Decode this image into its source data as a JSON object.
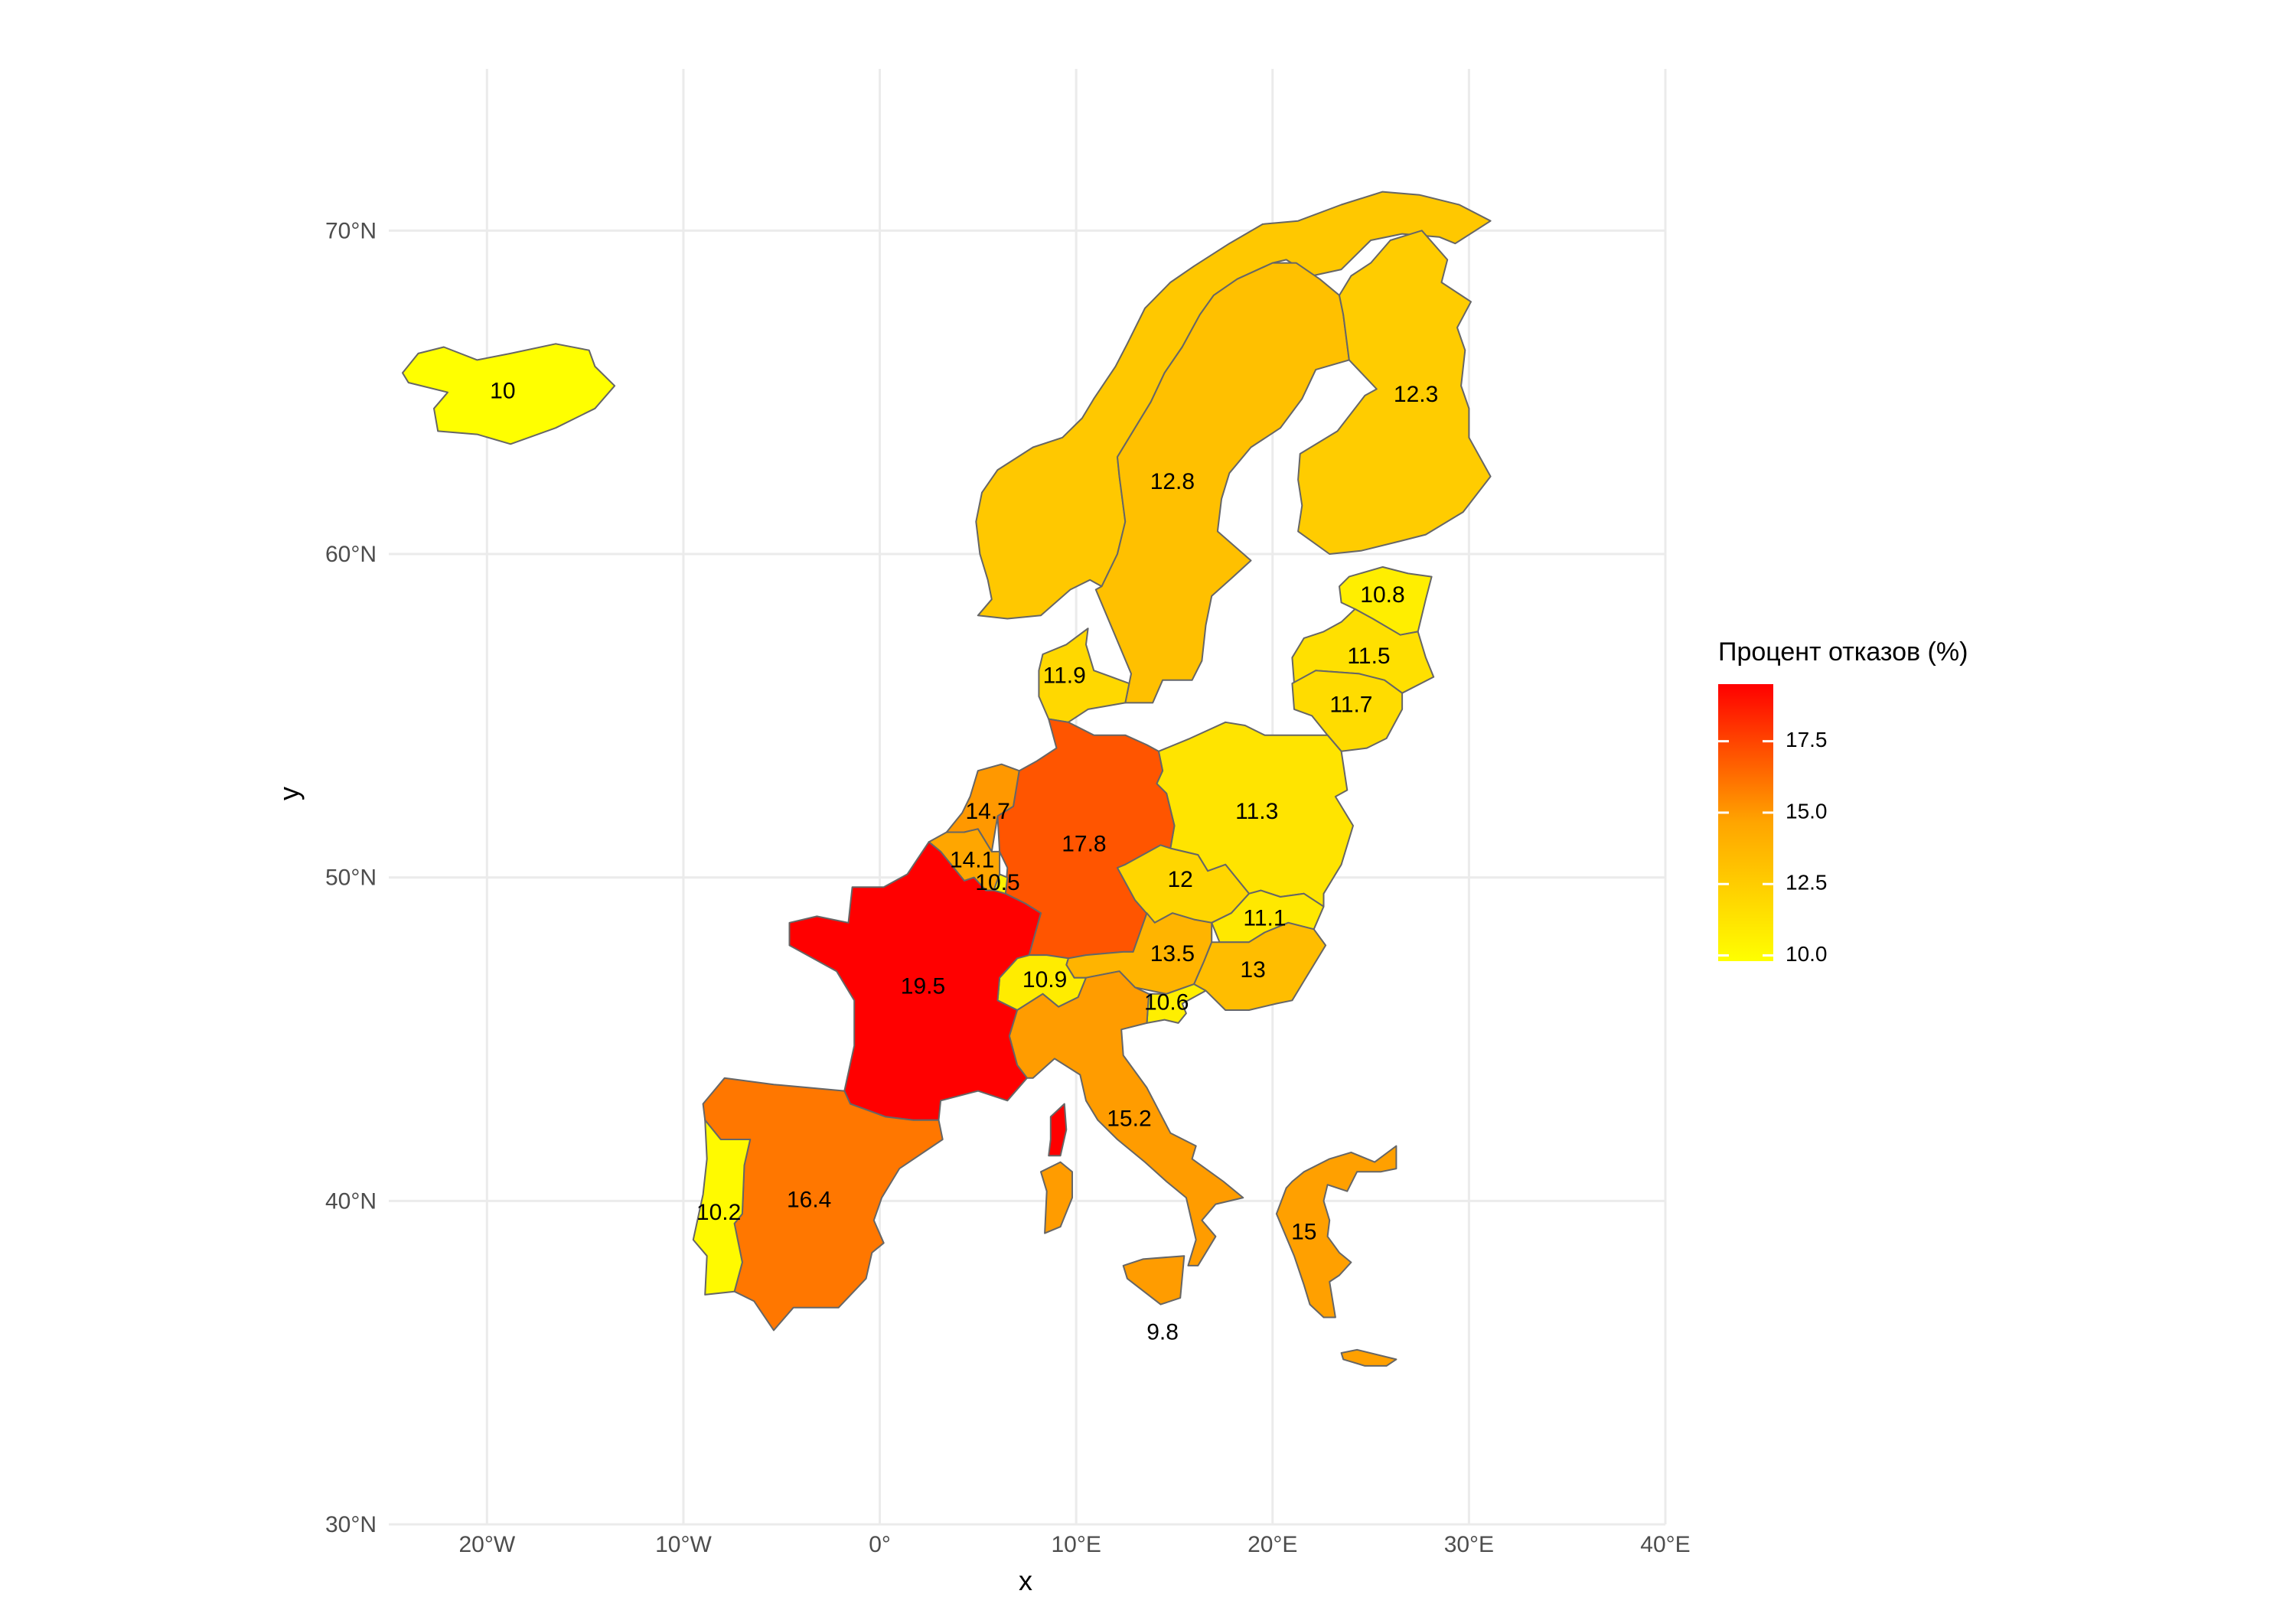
{
  "chart_data": {
    "type": "choropleth-map",
    "xlabel": "x",
    "ylabel": "y",
    "xlim": [
      -25,
      40
    ],
    "ylim": [
      30,
      75
    ],
    "x_ticks": [
      {
        "value": -20,
        "label": "20°W"
      },
      {
        "value": -10,
        "label": "10°W"
      },
      {
        "value": 0,
        "label": "0°"
      },
      {
        "value": 10,
        "label": "10°E"
      },
      {
        "value": 20,
        "label": "20°E"
      },
      {
        "value": 30,
        "label": "30°E"
      },
      {
        "value": 40,
        "label": "40°E"
      }
    ],
    "y_ticks": [
      {
        "value": 30,
        "label": "30°N"
      },
      {
        "value": 40,
        "label": "40°N"
      },
      {
        "value": 50,
        "label": "50°N"
      },
      {
        "value": 60,
        "label": "60°N"
      },
      {
        "value": 70,
        "label": "70°N"
      }
    ],
    "grid": true,
    "legend": {
      "title": "Процент отказов (%)",
      "placement": "right",
      "range": [
        9.8,
        19.5
      ],
      "colors": [
        "#ffff00",
        "#ffa500",
        "#ff0000"
      ],
      "ticks": [
        {
          "value": 10.0,
          "label": "10.0"
        },
        {
          "value": 12.5,
          "label": "12.5"
        },
        {
          "value": 15.0,
          "label": "15.0"
        },
        {
          "value": 17.5,
          "label": "17.5"
        }
      ]
    },
    "regions": [
      {
        "id": "iceland",
        "label": "10",
        "value": 10.0,
        "label_lon": -19.2,
        "label_lat": 65.0,
        "color": "#ffff00"
      },
      {
        "id": "norway",
        "label": "",
        "value": 12.8,
        "color": "#ffc800"
      },
      {
        "id": "sweden",
        "label": "12.8",
        "value": 12.8,
        "label_lon": 14.9,
        "label_lat": 62.2,
        "color": "#ffc000"
      },
      {
        "id": "finland",
        "label": "12.3",
        "value": 12.3,
        "label_lon": 27.3,
        "label_lat": 64.9,
        "color": "#ffcc00"
      },
      {
        "id": "estonia",
        "label": "10.8",
        "value": 10.8,
        "label_lon": 25.6,
        "label_lat": 58.7,
        "color": "#ffee00"
      },
      {
        "id": "latvia",
        "label": "11.5",
        "value": 11.5,
        "label_lon": 24.9,
        "label_lat": 56.8,
        "color": "#ffe000"
      },
      {
        "id": "lithuania",
        "label": "11.7",
        "value": 11.7,
        "label_lon": 24.0,
        "label_lat": 55.3,
        "color": "#ffdc00"
      },
      {
        "id": "denmark",
        "label": "11.9",
        "value": 11.9,
        "label_lon": 9.4,
        "label_lat": 56.2,
        "color": "#ffd800"
      },
      {
        "id": "poland",
        "label": "11.3",
        "value": 11.3,
        "label_lon": 19.2,
        "label_lat": 52.0,
        "color": "#ffe400"
      },
      {
        "id": "germany",
        "label": "17.8",
        "value": 17.8,
        "label_lon": 10.4,
        "label_lat": 51.0,
        "color": "#ff5500"
      },
      {
        "id": "netherlands",
        "label": "14.7",
        "value": 14.7,
        "label_lon": 5.5,
        "label_lat": 52.0,
        "color": "#ff9800"
      },
      {
        "id": "belgium",
        "label": "14.1",
        "value": 14.1,
        "label_lon": 4.7,
        "label_lat": 50.5,
        "color": "#ffa600"
      },
      {
        "id": "luxembourg",
        "label": "10.5",
        "value": 10.5,
        "label_lon": 6.0,
        "label_lat": 49.8,
        "color": "#fff000"
      },
      {
        "id": "czechia",
        "label": "12",
        "value": 12.0,
        "label_lon": 15.3,
        "label_lat": 49.9,
        "color": "#ffd600"
      },
      {
        "id": "slovakia",
        "label": "11.1",
        "value": 11.1,
        "label_lon": 19.6,
        "label_lat": 48.7,
        "color": "#ffe800"
      },
      {
        "id": "austria",
        "label": "13.5",
        "value": 13.5,
        "label_lon": 14.9,
        "label_lat": 47.6,
        "color": "#ffb400"
      },
      {
        "id": "hungary",
        "label": "13",
        "value": 13.0,
        "label_lon": 19.0,
        "label_lat": 47.1,
        "color": "#ffbd00"
      },
      {
        "id": "switzerland",
        "label": "10.9",
        "value": 10.9,
        "label_lon": 8.4,
        "label_lat": 46.8,
        "color": "#ffec00"
      },
      {
        "id": "slovenia",
        "label": "10.6",
        "value": 10.6,
        "label_lon": 14.6,
        "label_lat": 46.1,
        "color": "#ffef00"
      },
      {
        "id": "france",
        "label": "19.5",
        "value": 19.5,
        "label_lon": 2.2,
        "label_lat": 46.6,
        "color": "#ff0000"
      },
      {
        "id": "italy",
        "label": "15.2",
        "value": 15.2,
        "label_lon": 12.7,
        "label_lat": 42.5,
        "color": "#ff9c00"
      },
      {
        "id": "spain",
        "label": "16.4",
        "value": 16.4,
        "label_lon": -3.6,
        "label_lat": 40.0,
        "color": "#ff7700"
      },
      {
        "id": "portugal",
        "label": "10.2",
        "value": 10.2,
        "label_lon": -8.2,
        "label_lat": 39.6,
        "color": "#fffa00"
      },
      {
        "id": "greece",
        "label": "15",
        "value": 15.0,
        "label_lon": 21.6,
        "label_lat": 39.0,
        "color": "#ffa000"
      },
      {
        "id": "malta",
        "label": "9.8",
        "value": 9.8,
        "label_lon": 14.4,
        "label_lat": 35.9,
        "color": "#ffff00"
      }
    ]
  }
}
